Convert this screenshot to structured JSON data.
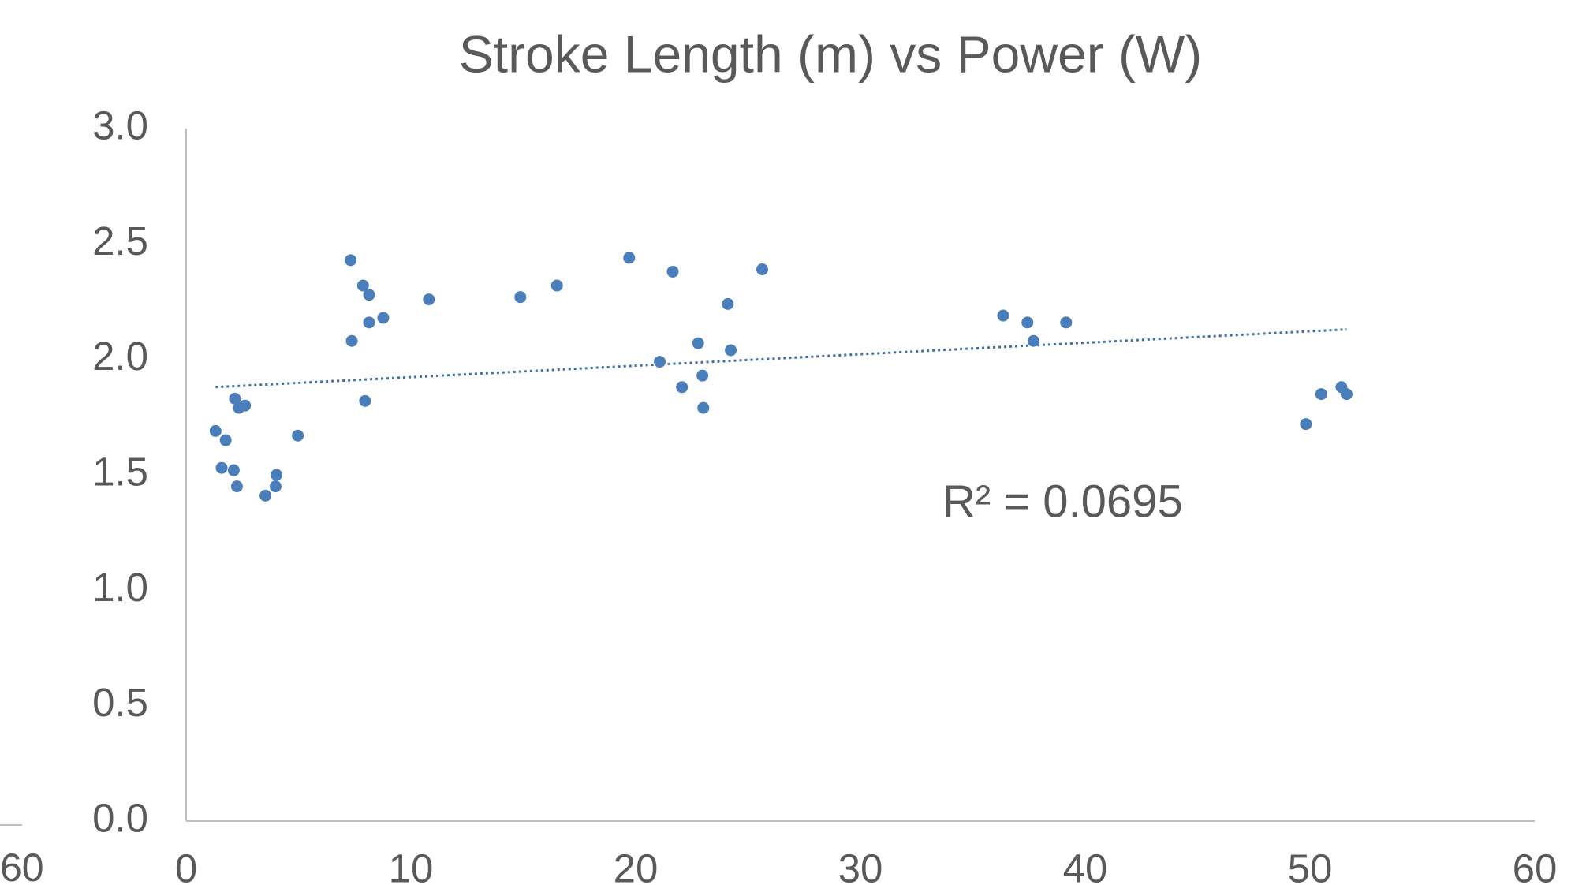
{
  "chart_data": {
    "type": "scatter",
    "title": "Stroke Length (m) vs Power (W)",
    "cropped_label": "60",
    "color": "#4a7ebb",
    "x": [
      1.31,
      1.76,
      1.58,
      2.12,
      2.26,
      2.17,
      2.35,
      2.62,
      3.53,
      3.98,
      4.02,
      4.97,
      7.32,
      7.37,
      7.87,
      8.14,
      8.14,
      7.96,
      8.77,
      10.8,
      14.87,
      16.5,
      19.71,
      21.07,
      21.65,
      22.06,
      22.78,
      22.97,
      23.01,
      24.1,
      24.23,
      25.63,
      36.35,
      37.43,
      37.7,
      39.15,
      49.82,
      50.5,
      51.4,
      51.63
    ],
    "values": [
      1.69,
      1.65,
      1.53,
      1.52,
      1.45,
      1.83,
      1.79,
      1.8,
      1.41,
      1.45,
      1.5,
      1.67,
      2.43,
      2.08,
      2.32,
      2.28,
      2.16,
      1.82,
      2.18,
      2.26,
      2.27,
      2.32,
      2.44,
      1.99,
      2.38,
      1.88,
      2.07,
      1.93,
      1.79,
      2.24,
      2.04,
      2.39,
      2.19,
      2.16,
      2.08,
      2.16,
      1.72,
      1.85,
      1.88,
      1.85
    ],
    "trendline": {
      "x": [
        1.31,
        51.63
      ],
      "values": [
        1.88,
        2.13
      ],
      "annotation": "R² = 0.0695"
    },
    "xlim": [
      0,
      60
    ],
    "xticks": [
      0,
      10,
      20,
      30,
      40,
      50,
      60
    ],
    "ylim": [
      0,
      3
    ],
    "yticks": [
      {
        "value": 0,
        "label": "0.0"
      },
      {
        "value": 0.5,
        "label": "0.5"
      },
      {
        "value": 1,
        "label": "1.0"
      },
      {
        "value": 1.5,
        "label": "1.5"
      },
      {
        "value": 2,
        "label": "2.0"
      },
      {
        "value": 2.5,
        "label": "2.5"
      },
      {
        "value": 3,
        "label": "3.0"
      }
    ],
    "grid": false
  }
}
